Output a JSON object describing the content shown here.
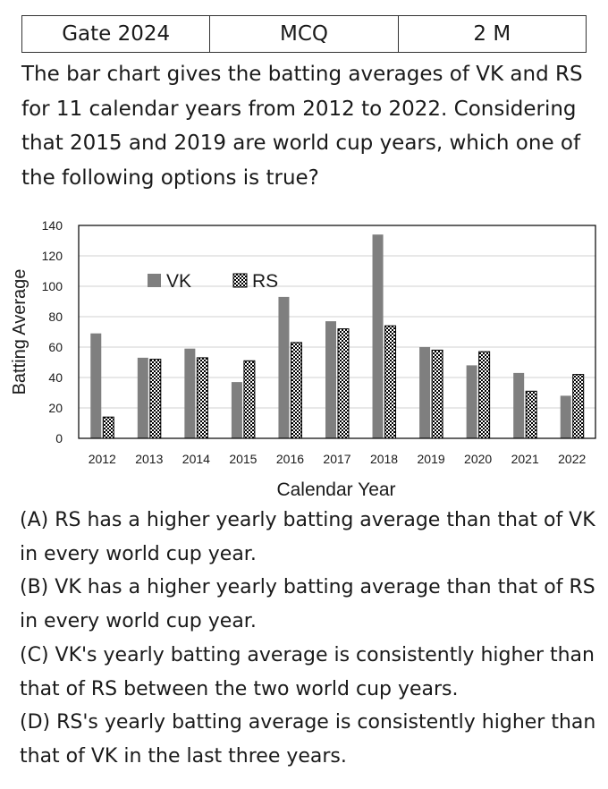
{
  "header": {
    "cells": [
      "Gate 2024",
      "MCQ",
      "2 M"
    ]
  },
  "question": "The bar chart gives the batting averages of VK and RS for 11 calendar years from 2012 to 2022. Considering that 2015 and 2019 are world cup years, which one of the following options is true?",
  "chart_data": {
    "type": "bar",
    "categories": [
      "2012",
      "2013",
      "2014",
      "2015",
      "2016",
      "2017",
      "2018",
      "2019",
      "2020",
      "2021",
      "2022"
    ],
    "series": [
      {
        "name": "VK",
        "values": [
          69,
          53,
          59,
          37,
          93,
          77,
          134,
          60,
          48,
          43,
          28
        ],
        "color": "#7f7f7f",
        "pattern": "solid"
      },
      {
        "name": "RS",
        "values": [
          14,
          52,
          53,
          51,
          63,
          72,
          74,
          58,
          57,
          31,
          42
        ],
        "color": "#000000",
        "pattern": "checkerboard"
      }
    ],
    "xlabel": "Calendar Year",
    "ylabel": "Batting Average",
    "ylim": [
      0,
      140
    ],
    "yticks": [
      "0",
      "20",
      "40",
      "60",
      "80",
      "100",
      "120",
      "140"
    ],
    "grid": true,
    "legend": "top-left"
  },
  "options": [
    {
      "label": "(A)",
      "text": "RS has a higher yearly batting average than that of VK in every world cup year."
    },
    {
      "label": "(B)",
      "text": "VK has a higher yearly batting average than that of RS in every world cup year."
    },
    {
      "label": "(C)",
      "text": "VK's yearly batting average is consistently higher than that of RS between the two world cup years."
    },
    {
      "label": "(D)",
      "text": "RS's yearly batting average is consistently higher than that of VK in the last three years."
    }
  ]
}
